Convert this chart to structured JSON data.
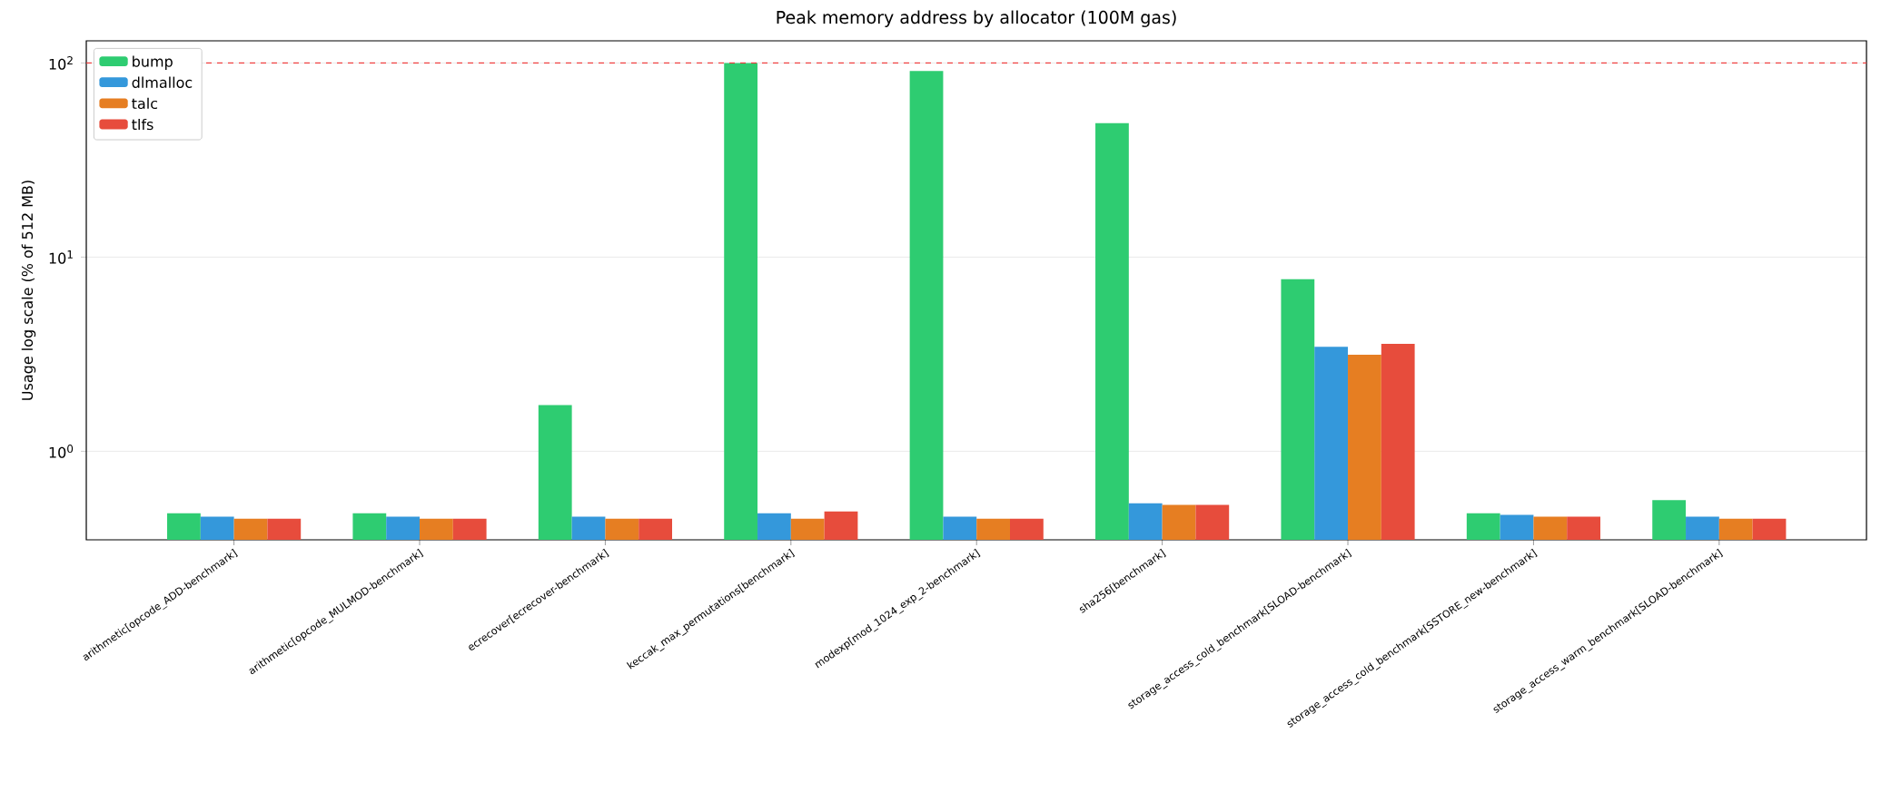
{
  "chart_data": {
    "type": "bar",
    "title": "Peak memory address by allocator (100M gas)",
    "ylabel": "Usage log scale (% of 512 MB)",
    "categories": [
      "arithmetic[opcode_ADD-benchmark]",
      "arithmetic[opcode_MULMOD-benchmark]",
      "ecrecover[ecrecover-benchmark]",
      "keccak_max_permutations[benchmark]",
      "modexp[mod_1024_exp_2-benchmark]",
      "sha256[benchmark]",
      "storage_access_cold_benchmark[SLOAD-benchmark]",
      "storage_access_cold_benchmark[SSTORE_new-benchmark]",
      "storage_access_warm_benchmark[SLOAD-benchmark]"
    ],
    "series": [
      {
        "name": "bump",
        "color": "#2ecc71",
        "values": [
          0.48,
          0.48,
          1.73,
          100,
          91,
          49,
          7.7,
          0.48,
          0.56
        ]
      },
      {
        "name": "dlmalloc",
        "color": "#3498db",
        "values": [
          0.46,
          0.46,
          0.46,
          0.48,
          0.46,
          0.54,
          3.45,
          0.47,
          0.46
        ]
      },
      {
        "name": "talc",
        "color": "#e67e22",
        "values": [
          0.45,
          0.45,
          0.45,
          0.45,
          0.45,
          0.53,
          3.14,
          0.46,
          0.45
        ]
      },
      {
        "name": "tlfs",
        "color": "#e74c3c",
        "values": [
          0.45,
          0.45,
          0.45,
          0.49,
          0.45,
          0.53,
          3.58,
          0.46,
          0.45
        ]
      }
    ],
    "log": "y",
    "ylim": [
      0.35,
      130
    ],
    "yticks": [
      {
        "value": 1,
        "label": "10$^{0}$"
      },
      {
        "value": 10,
        "label": "10$^{1}$"
      },
      {
        "value": 100,
        "label": "10$^{2}$"
      }
    ],
    "ref_lines": [
      {
        "axis": "y",
        "value": 100,
        "color": "#f03c3c",
        "line_style": "dashed"
      }
    ],
    "grid": "y",
    "legend": "top left"
  }
}
